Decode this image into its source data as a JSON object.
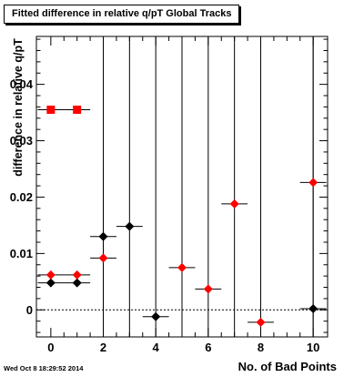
{
  "title": "Fitted difference in relative q/pT  Global Tracks",
  "timestamp": "Wed Oct  8 18:29:52 2014",
  "chart_data": {
    "type": "scatter",
    "title": "Fitted difference in relative q/pT  Global Tracks",
    "xlabel": "No. of Bad Points",
    "ylabel": "difference in relative q/pT",
    "xlim": [
      -0.55,
      10.55
    ],
    "ylim": [
      -0.0048,
      0.0485
    ],
    "x_ticks": [
      0,
      2,
      4,
      6,
      8,
      10
    ],
    "x_tick_labels": [
      "0",
      "2",
      "4",
      "6",
      "8",
      "10"
    ],
    "y_ticks": [
      0,
      0.01,
      0.02,
      0.03,
      0.04
    ],
    "y_tick_labels": [
      "0",
      "0.01",
      "0.02",
      "0.03",
      "0.04"
    ],
    "grid": false,
    "legend": "none",
    "series": [
      {
        "color": "#000000",
        "marker": "diamond",
        "points": [
          {
            "x": 0,
            "y": 0.0048,
            "xerr": 0.5,
            "yerr": 0
          },
          {
            "x": 1,
            "y": 0.0048,
            "xerr": 0.5,
            "yerr": 0
          },
          {
            "x": 2,
            "y": 0.013,
            "xerr": 0.5,
            "yerr": 0.0125
          },
          {
            "x": 3,
            "y": 0.0148,
            "xerr": 0.5,
            "yerr": 0.04
          },
          {
            "x": 4,
            "y": -0.0012,
            "xerr": 0.5,
            "yerr": 0.06
          },
          {
            "x": 10,
            "y": 0.0002,
            "xerr": 0.5,
            "yerr": 0.06
          }
        ]
      },
      {
        "color": "#ff0000",
        "marker": "square",
        "points": [
          {
            "x": 0,
            "y": 0.0355,
            "xerr": 0.5,
            "yerr": 0
          },
          {
            "x": 1,
            "y": 0.0355,
            "xerr": 0.5,
            "yerr": 0
          }
        ]
      },
      {
        "color": "#ff0000",
        "marker": "diamond",
        "points": [
          {
            "x": 0,
            "y": 0.0062,
            "xerr": 0.5,
            "yerr": 0
          },
          {
            "x": 1,
            "y": 0.0062,
            "xerr": 0.5,
            "yerr": 0
          },
          {
            "x": 2,
            "y": 0.0092,
            "xerr": 0.5,
            "yerr": 0.06
          },
          {
            "x": 5,
            "y": 0.0075,
            "xerr": 0.5,
            "yerr": 0.06
          },
          {
            "x": 6,
            "y": 0.0037,
            "xerr": 0.5,
            "yerr": 0.06
          },
          {
            "x": 7,
            "y": 0.0188,
            "xerr": 0.5,
            "yerr": 0.06
          },
          {
            "x": 8,
            "y": -0.0022,
            "xerr": 0.5,
            "yerr": 0.06
          },
          {
            "x": 10,
            "y": 0.0226,
            "xerr": 0.5,
            "yerr": 0.06
          }
        ]
      }
    ]
  }
}
